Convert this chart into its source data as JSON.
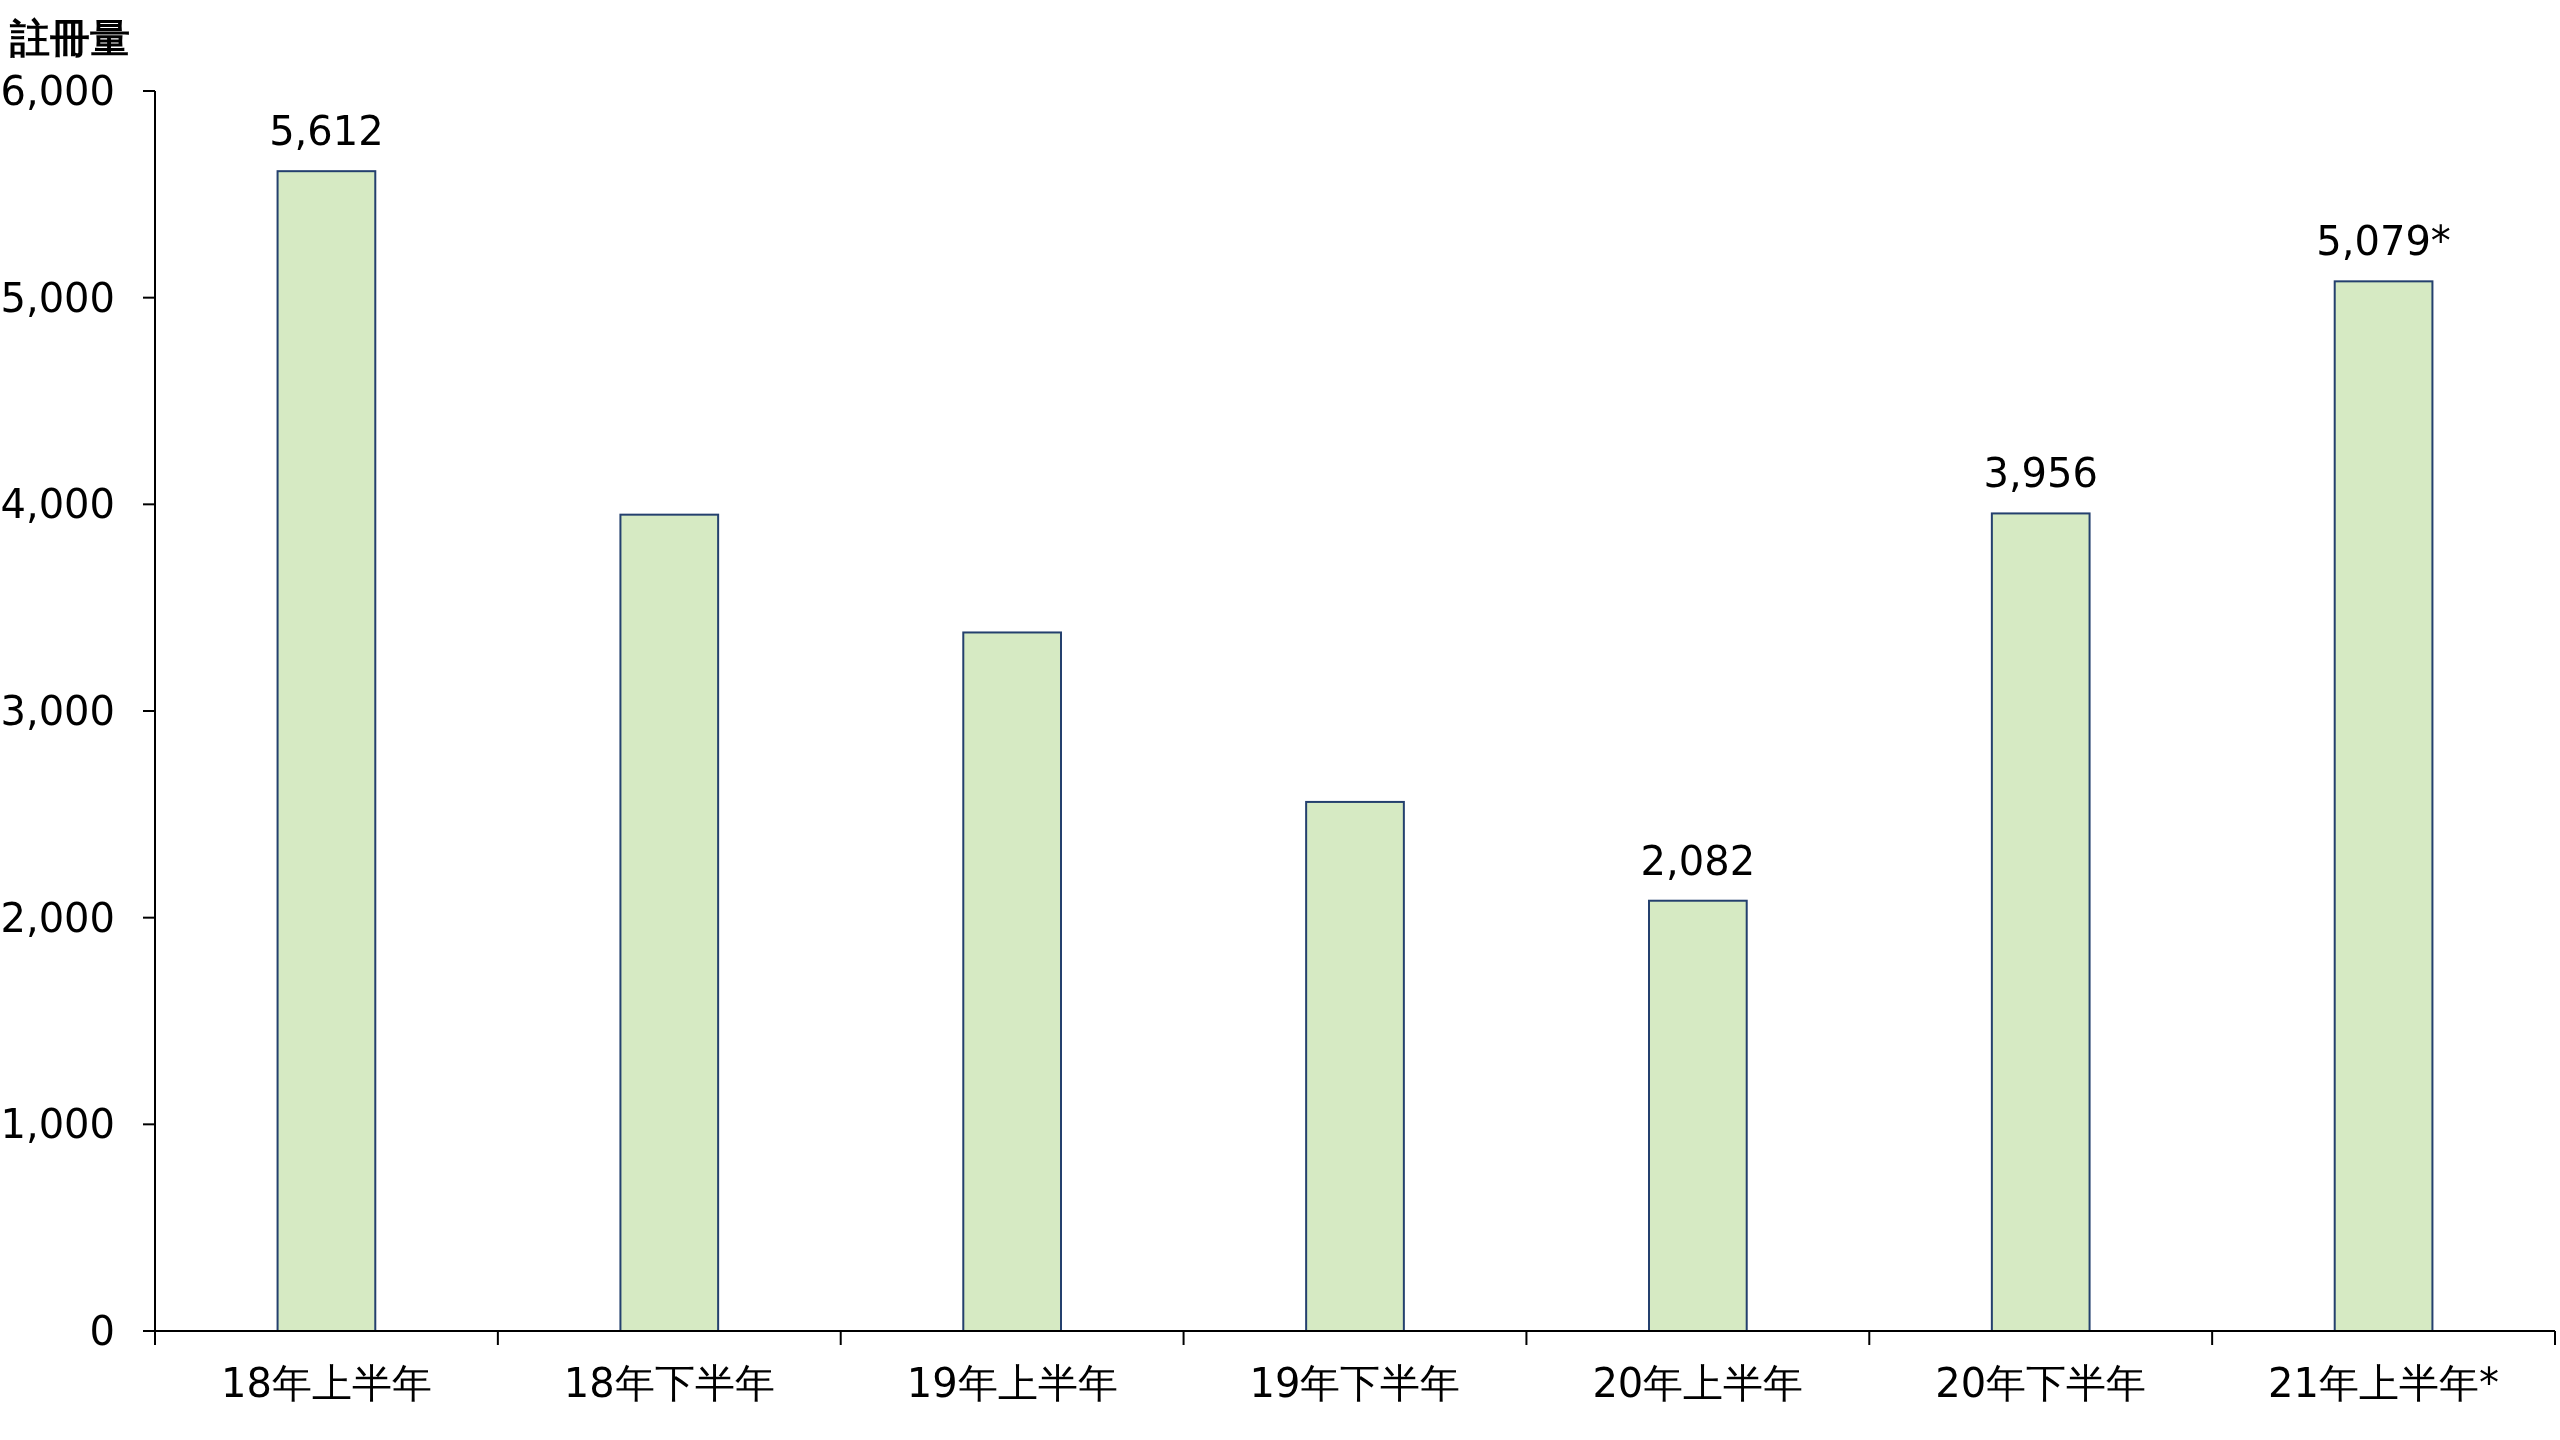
{
  "chart_data": {
    "type": "bar",
    "ylabel": "註冊量",
    "categories": [
      "18年上半年",
      "18年下半年",
      "19年上半年",
      "19年下半年",
      "20年上半年",
      "20年下半年",
      "21年上半年*"
    ],
    "values": [
      5612,
      3950,
      3380,
      2560,
      2082,
      3956,
      5079
    ],
    "value_labels": [
      "5,612",
      null,
      null,
      null,
      "2,082",
      "3,956",
      "5,079*"
    ],
    "color": "#d6eac3",
    "ylim": [
      0,
      6000
    ],
    "yticks": [
      {
        "value": 0,
        "label": "0"
      },
      {
        "value": 1000,
        "label": "1,000"
      },
      {
        "value": 2000,
        "label": "2,000"
      },
      {
        "value": 3000,
        "label": "3,000"
      },
      {
        "value": 4000,
        "label": "4,000"
      },
      {
        "value": 5000,
        "label": "5,000"
      },
      {
        "value": 6000,
        "label": "6,000"
      }
    ]
  }
}
